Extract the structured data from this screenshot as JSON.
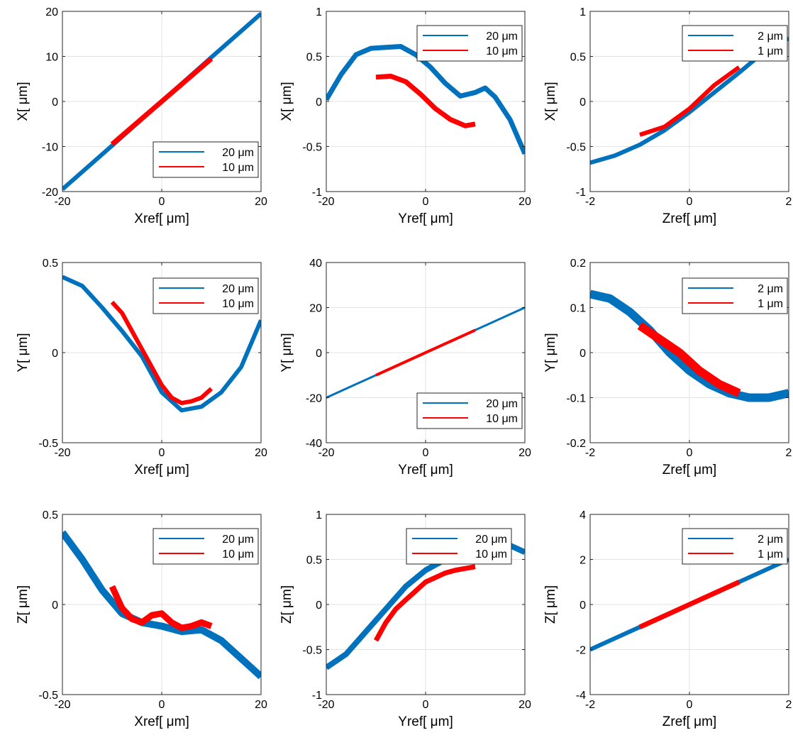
{
  "colors": {
    "series_1": "#0072BD",
    "series_2": "#FF0000",
    "grid": "#E3E3E3",
    "axes": "#262626"
  },
  "chart_data": [
    {
      "id": "x-vs-xref",
      "type": "line",
      "xlabel": "Xref[ μm]",
      "ylabel": "X[ μm]",
      "xlim": [
        -20,
        20
      ],
      "ylim": [
        -20,
        20
      ],
      "xticks": [
        -20,
        0,
        20
      ],
      "yticks": [
        -20,
        -10,
        0,
        10,
        20
      ],
      "grid": true,
      "legend_position": "bottom-right",
      "series": [
        {
          "name": "20 μm",
          "x": [
            -20,
            -10,
            0,
            10,
            20
          ],
          "y": [
            -19.5,
            -9.8,
            0,
            9.8,
            19.5
          ]
        },
        {
          "name": "10 μm",
          "x": [
            -10,
            0,
            10
          ],
          "y": [
            -9.5,
            0,
            9.5
          ]
        }
      ]
    },
    {
      "id": "x-vs-yref",
      "type": "line",
      "xlabel": "Yref[ μm]",
      "ylabel": "X[ μm]",
      "xlim": [
        -20,
        20
      ],
      "ylim": [
        -1,
        1
      ],
      "xticks": [
        -20,
        0,
        20
      ],
      "yticks": [
        -1,
        -0.5,
        0,
        0.5,
        1
      ],
      "grid": true,
      "legend_position": "top-right",
      "series": [
        {
          "name": "20 μm",
          "x": [
            -20,
            -17,
            -14,
            -11,
            -8,
            -5,
            -2,
            1,
            4,
            7,
            10,
            12,
            14,
            17,
            20
          ],
          "y": [
            0.02,
            0.3,
            0.52,
            0.59,
            0.6,
            0.61,
            0.52,
            0.38,
            0.2,
            0.06,
            0.1,
            0.15,
            0.05,
            -0.2,
            -0.58
          ]
        },
        {
          "name": "10 μm",
          "x": [
            -10,
            -7,
            -4,
            -1,
            2,
            5,
            8,
            10
          ],
          "y": [
            0.27,
            0.28,
            0.22,
            0.08,
            -0.08,
            -0.2,
            -0.27,
            -0.25
          ]
        }
      ]
    },
    {
      "id": "x-vs-zref",
      "type": "line",
      "xlabel": "Zref[ μm]",
      "ylabel": "X[ μm]",
      "xlim": [
        -2,
        2
      ],
      "ylim": [
        -1,
        1
      ],
      "xticks": [
        -2,
        0,
        2
      ],
      "yticks": [
        -1,
        -0.5,
        0,
        0.5,
        1
      ],
      "grid": true,
      "legend_position": "top-right",
      "series": [
        {
          "name": "2 μm",
          "x": [
            -2,
            -1.5,
            -1,
            -0.5,
            0,
            0.5,
            1,
            1.5,
            2
          ],
          "y": [
            -0.68,
            -0.6,
            -0.48,
            -0.32,
            -0.12,
            0.1,
            0.32,
            0.55,
            0.7
          ]
        },
        {
          "name": "1 μm",
          "x": [
            -1,
            -0.5,
            0,
            0.5,
            1
          ],
          "y": [
            -0.37,
            -0.28,
            -0.08,
            0.18,
            0.38
          ]
        }
      ]
    },
    {
      "id": "y-vs-xref",
      "type": "line",
      "xlabel": "Xref[ μm]",
      "ylabel": "Y[ μm]",
      "xlim": [
        -20,
        20
      ],
      "ylim": [
        -0.5,
        0.5
      ],
      "xticks": [
        -20,
        0,
        20
      ],
      "yticks": [
        -0.5,
        0,
        0.5
      ],
      "grid": true,
      "legend_position": "top-right",
      "series": [
        {
          "name": "20 μm",
          "x": [
            -20,
            -16,
            -12,
            -8,
            -4,
            0,
            4,
            8,
            12,
            16,
            20
          ],
          "y": [
            0.42,
            0.37,
            0.25,
            0.12,
            -0.02,
            -0.22,
            -0.32,
            -0.3,
            -0.22,
            -0.08,
            0.18
          ]
        },
        {
          "name": "10 μm",
          "x": [
            -10,
            -8,
            -6,
            -4,
            -2,
            0,
            2,
            4,
            6,
            8,
            10
          ],
          "y": [
            0.28,
            0.22,
            0.12,
            0.02,
            -0.08,
            -0.18,
            -0.25,
            -0.28,
            -0.27,
            -0.25,
            -0.2
          ]
        }
      ]
    },
    {
      "id": "y-vs-yref",
      "type": "line",
      "xlabel": "Yref[ μm]",
      "ylabel": "Y[ μm]",
      "xlim": [
        -20,
        20
      ],
      "ylim": [
        -40,
        40
      ],
      "xticks": [
        -20,
        0,
        20
      ],
      "yticks": [
        -40,
        -20,
        0,
        20,
        40
      ],
      "grid": true,
      "legend_position": "bottom-right",
      "series": [
        {
          "name": "20 μm",
          "x": [
            -20,
            0,
            20
          ],
          "y": [
            -20,
            0,
            20
          ]
        },
        {
          "name": "10 μm",
          "x": [
            -10,
            0,
            10
          ],
          "y": [
            -10,
            0,
            10
          ]
        }
      ]
    },
    {
      "id": "y-vs-zref",
      "type": "line",
      "xlabel": "Zref[ μm]",
      "ylabel": "Y[ μm]",
      "xlim": [
        -2,
        2
      ],
      "ylim": [
        -0.2,
        0.2
      ],
      "xticks": [
        -2,
        0,
        2
      ],
      "yticks": [
        -0.2,
        -0.1,
        0,
        0.1,
        0.2
      ],
      "grid": true,
      "legend_position": "top-right",
      "series": [
        {
          "name": "2 μm",
          "x": [
            -2,
            -1.6,
            -1.2,
            -0.8,
            -0.4,
            0,
            0.4,
            0.8,
            1.2,
            1.6,
            2
          ],
          "y": [
            0.13,
            0.12,
            0.09,
            0.05,
            0.0,
            -0.04,
            -0.07,
            -0.09,
            -0.1,
            -0.1,
            -0.09
          ]
        },
        {
          "name": "1 μm",
          "x": [
            -1,
            -0.6,
            -0.2,
            0.2,
            0.6,
            1
          ],
          "y": [
            0.06,
            0.03,
            0.0,
            -0.04,
            -0.07,
            -0.09
          ]
        }
      ]
    },
    {
      "id": "z-vs-xref",
      "type": "line",
      "xlabel": "Xref[ μm]",
      "ylabel": "Z[ μm]",
      "xlim": [
        -20,
        20
      ],
      "ylim": [
        -0.5,
        0.5
      ],
      "xticks": [
        -20,
        0,
        20
      ],
      "yticks": [
        -0.5,
        0,
        0.5
      ],
      "grid": true,
      "legend_position": "top-right",
      "series": [
        {
          "name": "20 μm",
          "x": [
            -20,
            -16,
            -12,
            -8,
            -4,
            0,
            4,
            8,
            12,
            16,
            20
          ],
          "y": [
            0.4,
            0.25,
            0.08,
            -0.05,
            -0.1,
            -0.12,
            -0.15,
            -0.14,
            -0.2,
            -0.3,
            -0.4
          ]
        },
        {
          "name": "10 μm",
          "x": [
            -10,
            -8,
            -6,
            -4,
            -2,
            0,
            2,
            4,
            6,
            8,
            10
          ],
          "y": [
            0.1,
            -0.02,
            -0.08,
            -0.1,
            -0.06,
            -0.05,
            -0.1,
            -0.13,
            -0.12,
            -0.1,
            -0.12
          ]
        }
      ]
    },
    {
      "id": "z-vs-yref",
      "type": "line",
      "xlabel": "Yref[ μm]",
      "ylabel": "Z[ μm]",
      "xlim": [
        -20,
        20
      ],
      "ylim": [
        -1,
        1
      ],
      "xticks": [
        -20,
        0,
        20
      ],
      "yticks": [
        -1,
        -0.5,
        0,
        0.5,
        1
      ],
      "grid": true,
      "legend_position": "top-right",
      "series": [
        {
          "name": "20 μm",
          "x": [
            -20,
            -16,
            -12,
            -8,
            -4,
            0,
            4,
            8,
            12,
            16,
            20
          ],
          "y": [
            -0.7,
            -0.55,
            -0.3,
            -0.05,
            0.2,
            0.38,
            0.5,
            0.58,
            0.64,
            0.68,
            0.58
          ]
        },
        {
          "name": "10 μm",
          "x": [
            -10,
            -8,
            -6,
            -4,
            -2,
            0,
            2,
            4,
            6,
            8,
            10
          ],
          "y": [
            -0.4,
            -0.2,
            -0.05,
            0.05,
            0.15,
            0.25,
            0.3,
            0.35,
            0.38,
            0.4,
            0.42
          ]
        }
      ]
    },
    {
      "id": "z-vs-zref",
      "type": "line",
      "xlabel": "Zref[ μm]",
      "ylabel": "Z[ μm]",
      "xlim": [
        -2,
        2
      ],
      "ylim": [
        -4,
        4
      ],
      "xticks": [
        -2,
        0,
        2
      ],
      "yticks": [
        -4,
        -2,
        0,
        2,
        4
      ],
      "grid": true,
      "legend_position": "top-right",
      "series": [
        {
          "name": "2 μm",
          "x": [
            -2,
            0,
            2
          ],
          "y": [
            -2,
            0,
            2
          ]
        },
        {
          "name": "1 μm",
          "x": [
            -1,
            0,
            1
          ],
          "y": [
            -1,
            0,
            1
          ]
        }
      ]
    }
  ]
}
